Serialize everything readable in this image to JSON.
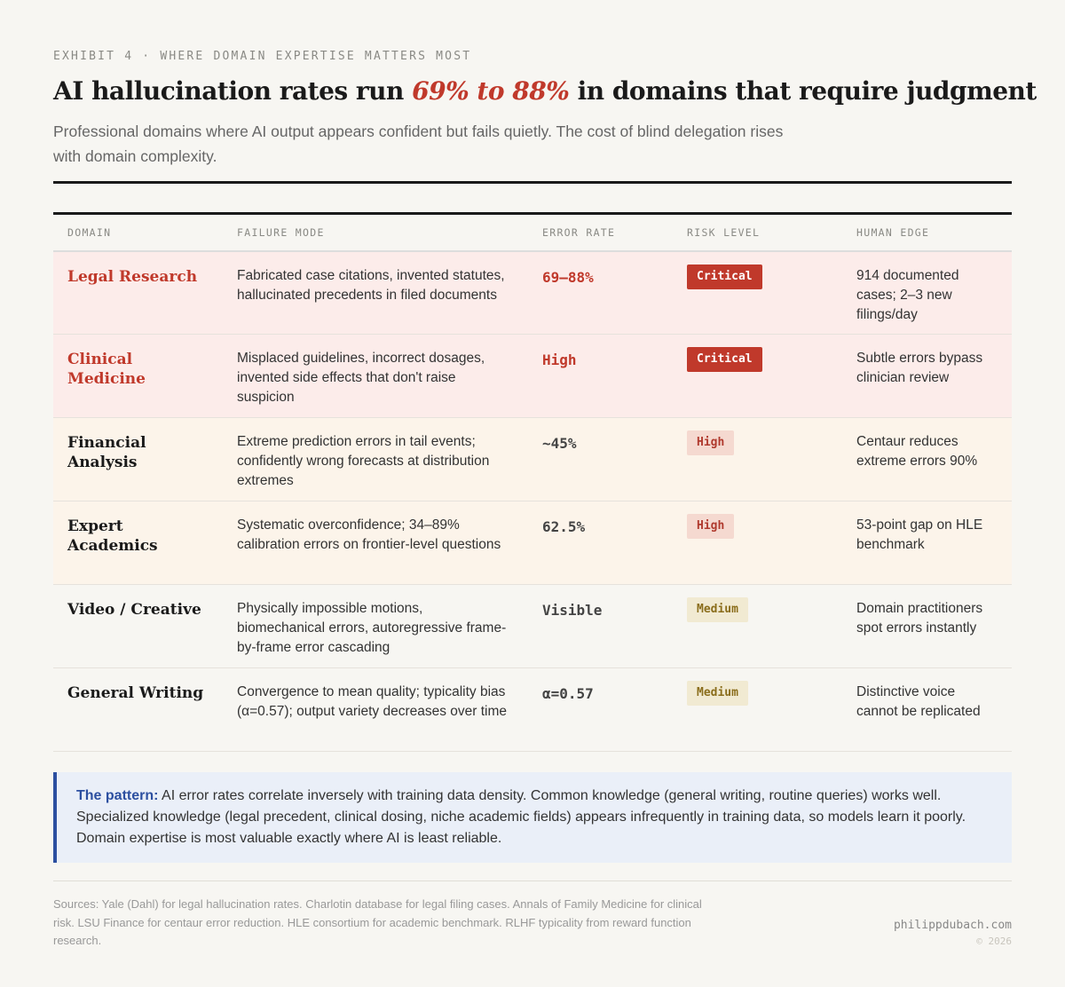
{
  "eyebrow": "EXHIBIT 4 · WHERE DOMAIN EXPERTISE MATTERS MOST",
  "title": {
    "before": "AI hallucination rates run ",
    "highlight": "69% to 88%",
    "after": " in domains that require judgment"
  },
  "subtitle": "Professional domains where AI output appears confident but fails quietly. The cost of blind delegation rises with domain complexity.",
  "table": {
    "headers": [
      "DOMAIN",
      "FAILURE MODE",
      "ERROR RATE",
      "RISK LEVEL",
      "HUMAN EDGE"
    ],
    "rows": [
      {
        "domain": "Legal Research",
        "failure": "Fabricated case citations, invented statutes, hallucinated precedents in filed documents",
        "error": "69–88%",
        "risk": "Critical",
        "edge": "914 documented cases; 2–3 new filings/day"
      },
      {
        "domain": "Clinical Medicine",
        "failure": "Misplaced guidelines, incorrect dosages, invented side effects that don't raise suspicion",
        "error": "High",
        "risk": "Critical",
        "edge": "Subtle errors bypass clinician review"
      },
      {
        "domain": "Financial Analysis",
        "failure": "Extreme prediction errors in tail events; confidently wrong forecasts at distribution extremes",
        "error": "~45%",
        "risk": "High",
        "edge": "Centaur reduces extreme errors 90%"
      },
      {
        "domain": "Expert Academics",
        "failure": "Systematic overconfidence; 34–89% calibration errors on frontier-level questions",
        "error": "62.5%",
        "risk": "High",
        "edge": "53-point gap on HLE benchmark"
      },
      {
        "domain": "Video / Creative",
        "failure": "Physically impossible motions, biomechanical errors, autoregressive frame-by-frame error cascading",
        "error": "Visible",
        "risk": "Medium",
        "edge": "Domain practitioners spot errors instantly"
      },
      {
        "domain": "General Writing",
        "failure": "Convergence to mean quality; typicality bias (α=0.57); output variety decreases over time",
        "error": "α=0.57",
        "risk": "Medium",
        "edge": "Distinctive voice cannot be replicated"
      }
    ]
  },
  "callout": {
    "label": "The pattern:",
    "text": " AI error rates correlate inversely with training data density. Common knowledge (general writing, routine queries) works well. Specialized knowledge (legal precedent, clinical dosing, niche academic fields) appears infrequently in training data, so models learn it poorly. Domain expertise is most valuable exactly where AI is least reliable."
  },
  "footer": {
    "sources": "Sources: Yale (Dahl) for legal hallucination rates. Charlotin database for legal filing cases. Annals of Family Medicine for clinical risk. LSU Finance for centaur error reduction. HLE consortium for academic benchmark. RLHF typicality from reward function research.",
    "site": "philippdubach.com",
    "copyright": "© 2026"
  },
  "colors": {
    "accent": "#c0392b",
    "callout": "#2c4fa0",
    "background": "#f7f6f2"
  }
}
